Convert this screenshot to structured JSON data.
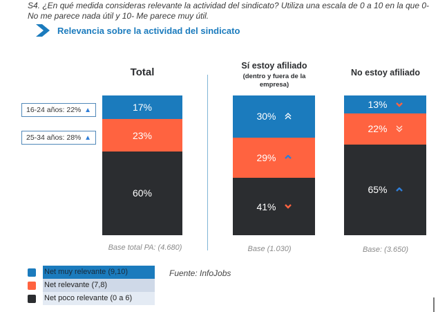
{
  "question": "S4. ¿En qué medida consideras relevante la actividad del sindicato? Utiliza una escala de 0 a 10 en la que 0- No me parece nada útil y 10- Me parece muy útil.",
  "subtitle": "Relevancia sobre la actividad del sindicato",
  "source": "Fuente: InfoJobs",
  "colors": {
    "blue": "#1b7bbd",
    "orange": "#ff6340",
    "dark": "#2b2d30",
    "up_arrow": "#2f7ed8",
    "down_arrow": "#ff6340"
  },
  "age_callouts": [
    {
      "label": "16-24 años: 22%",
      "icon": "chevron-up-icon"
    },
    {
      "label": "25-34 años: 28%",
      "icon": "chevron-up-icon"
    }
  ],
  "chart_data": {
    "type": "bar",
    "stacked": true,
    "title": "Relevancia sobre la actividad del sindicato",
    "categories": [
      "Total",
      "Sí estoy afiliado",
      "No estoy afiliado"
    ],
    "category_subtitles": [
      "",
      "(dentro y fuera de la empresa)",
      ""
    ],
    "bases": [
      "Base total PA: (4.680)",
      "Base (1.030)",
      "Base: (3.650)"
    ],
    "series": [
      {
        "name": "Net muy relevante (9,10)",
        "color": "#1b7bbd",
        "values": [
          17,
          30,
          13
        ],
        "labels": [
          "17%",
          "30%",
          "13%"
        ],
        "arrows": [
          "",
          "double-up",
          "down"
        ]
      },
      {
        "name": "Net relevante (7,8)",
        "color": "#ff6340",
        "values": [
          23,
          29,
          22
        ],
        "labels": [
          "23%",
          "29%",
          "22%"
        ],
        "arrows": [
          "",
          "up",
          "double-down"
        ]
      },
      {
        "name": "Net poco relevante (0 a 6)",
        "color": "#2b2d30",
        "values": [
          60,
          41,
          65
        ],
        "labels": [
          "60%",
          "41%",
          "65%"
        ],
        "arrows": [
          "",
          "down",
          "up"
        ]
      }
    ],
    "ylim": [
      0,
      100
    ],
    "legend": "bottom-left"
  }
}
